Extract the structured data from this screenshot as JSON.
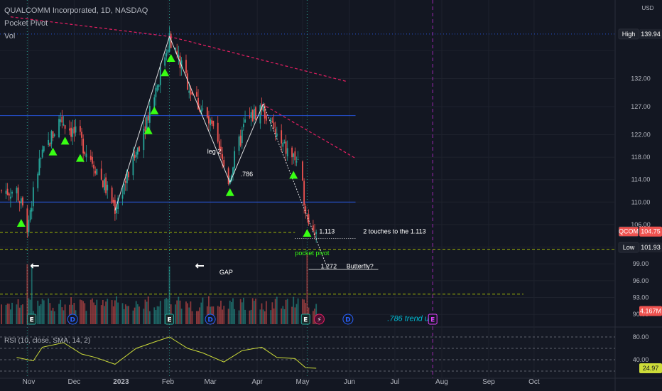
{
  "header": {
    "symbol_title": "QUALCOMM Incorporated, 1D, NASDAQ",
    "indicator_1": "Pocket Pivot",
    "indicator_2": "Vol",
    "currency": "USD"
  },
  "colors": {
    "background": "#131722",
    "up": "#26a69a",
    "down": "#ef5350",
    "pocket_pivot_marker": "#39ff14",
    "trendline": "#e91e63",
    "pattern_line": "#ffffff",
    "dashed_level": "#c6e100",
    "vertical_marker": "#9c27b0",
    "rsi_line": "#cddc39"
  },
  "chart_data": {
    "type": "candlestick",
    "price_axis": {
      "ylim": [
        88,
        146
      ],
      "ticks": [
        90.0,
        93.0,
        96.0,
        99.0,
        102.0,
        106.0,
        110.0,
        114.0,
        118.0,
        122.0,
        127.0,
        132.0,
        137.0
      ],
      "tick_labels": [
        "90.00",
        "93.00",
        "96.00",
        "99.00",
        "",
        "106.00",
        "110.00",
        "114.00",
        "118.00",
        "122.00",
        "127.00",
        "132.00",
        ""
      ]
    },
    "time_axis": {
      "labels": [
        "Nov",
        "Dec",
        "2023",
        "Feb",
        "Mar",
        "Apr",
        "May",
        "Jun",
        "Jul",
        "Aug",
        "Sep",
        "Oct"
      ]
    },
    "price_labels": [
      {
        "id": "high",
        "tag": "High",
        "value": "139.94"
      },
      {
        "id": "qcom",
        "tag": "QCOM",
        "value": "104.75"
      },
      {
        "id": "low",
        "tag": "Low",
        "value": "101.93"
      },
      {
        "id": "volume",
        "tag": "",
        "value": "4.167M"
      }
    ],
    "ohlc_anchor_path": [
      {
        "date": "2022-10-24",
        "price": 112.0
      },
      {
        "date": "2022-10-31",
        "price": 106.0
      },
      {
        "date": "2022-11-08",
        "price": 117.0
      },
      {
        "date": "2022-11-22",
        "price": 125.0
      },
      {
        "date": "2022-12-05",
        "price": 121.0
      },
      {
        "date": "2022-12-14",
        "price": 117.0
      },
      {
        "date": "2022-12-28",
        "price": 109.0
      },
      {
        "date": "2023-01-10",
        "price": 118.0
      },
      {
        "date": "2023-01-27",
        "price": 133.0
      },
      {
        "date": "2023-02-02",
        "price": 139.5
      },
      {
        "date": "2023-02-16",
        "price": 130.0
      },
      {
        "date": "2023-03-02",
        "price": 123.0
      },
      {
        "date": "2023-03-13",
        "price": 114.0
      },
      {
        "date": "2023-03-24",
        "price": 124.0
      },
      {
        "date": "2023-04-04",
        "price": 127.0
      },
      {
        "date": "2023-04-17",
        "price": 120.0
      },
      {
        "date": "2023-04-27",
        "price": 117.5
      },
      {
        "date": "2023-05-02",
        "price": 111.0
      },
      {
        "date": "2023-05-05",
        "price": 106.0
      },
      {
        "date": "2023-05-10",
        "price": 104.75
      }
    ],
    "pocket_pivot_dates": [
      "2022-10-27",
      "2022-11-17",
      "2022-11-25",
      "2022-12-05",
      "2023-01-19",
      "2023-01-23",
      "2023-01-30",
      "2023-02-03",
      "2023-03-14",
      "2023-04-25",
      "2023-05-04"
    ],
    "volume_spike_dates": [
      "2022-10-31",
      "2022-11-03",
      "2023-02-02",
      "2023-05-04"
    ],
    "horizontal_levels": [
      {
        "id": "level-110",
        "price": 110.0,
        "style": "solid",
        "color": "#2962ff"
      },
      {
        "id": "level-1113",
        "price": 104.6,
        "style": "dashed",
        "color": "#c6e100"
      },
      {
        "id": "level-1272",
        "price": 101.6,
        "style": "dashed",
        "color": "#c6e100"
      },
      {
        "id": "level-93",
        "price": 93.6,
        "style": "dashed",
        "color": "#c6e100"
      },
      {
        "id": "level-high",
        "price": 139.94,
        "style": "dotted",
        "color": "#2962ff"
      },
      {
        "id": "level-127",
        "price": 125.4,
        "style": "solid",
        "color": "#2962ff"
      }
    ],
    "trendlines": [
      {
        "id": "trend-upper",
        "from": {
          "date": "2022-10-20",
          "price": 143.0
        },
        "to": {
          "date": "2023-02-02",
          "price": 139.5
        }
      },
      {
        "id": "trend-mid",
        "from": {
          "date": "2023-02-02",
          "price": 139.5
        },
        "to": {
          "date": "2023-05-30",
          "price": 131.5
        }
      },
      {
        "id": "trend-lower",
        "from": {
          "date": "2023-04-04",
          "price": 127.5
        },
        "to": {
          "date": "2023-06-05",
          "price": 117.8
        }
      }
    ],
    "harmonic_path": [
      {
        "date": "2022-12-28",
        "price": 108.5
      },
      {
        "date": "2023-02-02",
        "price": 139.5
      },
      {
        "date": "2023-03-14",
        "price": 113.5
      },
      {
        "date": "2023-04-05",
        "price": 127.5
      },
      {
        "date": "2023-05-17",
        "price": 98.5
      }
    ],
    "annotations": [
      {
        "id": "leg-2",
        "text": "leg 2",
        "date": "2023-02-27",
        "price": 119.0,
        "color": "#ffffff"
      },
      {
        "id": "ratio-786",
        "text": ".786",
        "date": "2023-03-21",
        "price": 115.0,
        "color": "#ffffff"
      },
      {
        "id": "ratio-1113",
        "text": "1.113",
        "date": "2023-05-12",
        "price": 104.8,
        "color": "#ffffff"
      },
      {
        "id": "two-touches",
        "text": "2 touches to the 1.113",
        "date": "2023-06-10",
        "price": 104.8,
        "color": "#ffffff"
      },
      {
        "id": "pocket-pivot",
        "text": "pocket pivot",
        "date": "2023-04-26",
        "price": 100.9,
        "color": "#39ff14"
      },
      {
        "id": "ratio-1272",
        "text": "1.272",
        "date": "2023-05-13",
        "price": 98.6,
        "color": "#ffffff"
      },
      {
        "id": "butterfly",
        "text": "Butterfly?",
        "date": "2023-05-30",
        "price": 98.6,
        "color": "#ffffff"
      },
      {
        "id": "gap",
        "text": "GAP",
        "date": "2023-03-07",
        "price": 97.5,
        "color": "#ffffff"
      },
      {
        "id": "trend-up",
        "text": ".786 trend up",
        "date": "2023-06-26",
        "price": 89.2,
        "color": "#00bcd4"
      }
    ],
    "arrows": [
      {
        "id": "arrow-left-1",
        "glyph": "←",
        "date": "2022-11-05",
        "price": 98.0
      },
      {
        "id": "arrow-left-2",
        "glyph": "←",
        "date": "2023-02-22",
        "price": 98.0
      }
    ],
    "event_markers": [
      {
        "id": "earnings-1",
        "letter": "E",
        "date": "2022-11-03",
        "kind": "earnings"
      },
      {
        "id": "dividend-1",
        "letter": "D",
        "date": "2022-11-30",
        "kind": "dividend"
      },
      {
        "id": "earnings-2",
        "letter": "E",
        "date": "2023-02-02",
        "kind": "earnings"
      },
      {
        "id": "dividend-2",
        "letter": "D",
        "date": "2023-03-01",
        "kind": "dividend"
      },
      {
        "id": "earnings-3",
        "letter": "E",
        "date": "2023-05-03",
        "kind": "earnings"
      },
      {
        "id": "split-1",
        "letter": "⚡",
        "date": "2023-05-12",
        "kind": "split"
      },
      {
        "id": "dividend-3",
        "letter": "D",
        "date": "2023-05-31",
        "kind": "dividend"
      },
      {
        "id": "earnings-4",
        "letter": "E",
        "date": "2023-07-26",
        "kind": "earnings-future"
      }
    ],
    "vertical_lines": [
      {
        "id": "vline-nov",
        "date": "2022-10-31",
        "style": "dotted",
        "color": "#2a9d8f"
      },
      {
        "id": "vline-feb",
        "date": "2023-02-02",
        "style": "dotted",
        "color": "#2a9d8f"
      },
      {
        "id": "vline-may",
        "date": "2023-05-04",
        "style": "dotted",
        "color": "#2a9d8f"
      },
      {
        "id": "vline-jul",
        "date": "2023-07-26",
        "style": "dashed",
        "color": "#9c27b0"
      }
    ],
    "rsi": {
      "legend": "RSI (10, close, SMA, 14, 2)",
      "ylim": [
        15,
        90
      ],
      "ticks": [
        80.0,
        40.0
      ],
      "tick_labels": [
        "80.00",
        "40.00"
      ],
      "current": "24.97",
      "bands": [
        80,
        60,
        40,
        20
      ],
      "series": [
        {
          "date": "2022-10-24",
          "value": 44
        },
        {
          "date": "2022-11-04",
          "value": 38
        },
        {
          "date": "2022-11-10",
          "value": 62
        },
        {
          "date": "2022-11-24",
          "value": 70
        },
        {
          "date": "2022-12-06",
          "value": 50
        },
        {
          "date": "2022-12-15",
          "value": 44
        },
        {
          "date": "2022-12-28",
          "value": 32
        },
        {
          "date": "2023-01-11",
          "value": 60
        },
        {
          "date": "2023-01-24",
          "value": 72
        },
        {
          "date": "2023-02-02",
          "value": 80
        },
        {
          "date": "2023-02-14",
          "value": 60
        },
        {
          "date": "2023-02-24",
          "value": 52
        },
        {
          "date": "2023-03-10",
          "value": 36
        },
        {
          "date": "2023-03-22",
          "value": 56
        },
        {
          "date": "2023-04-04",
          "value": 62
        },
        {
          "date": "2023-04-14",
          "value": 44
        },
        {
          "date": "2023-04-26",
          "value": 42
        },
        {
          "date": "2023-05-03",
          "value": 26
        },
        {
          "date": "2023-05-10",
          "value": 25
        }
      ]
    }
  }
}
